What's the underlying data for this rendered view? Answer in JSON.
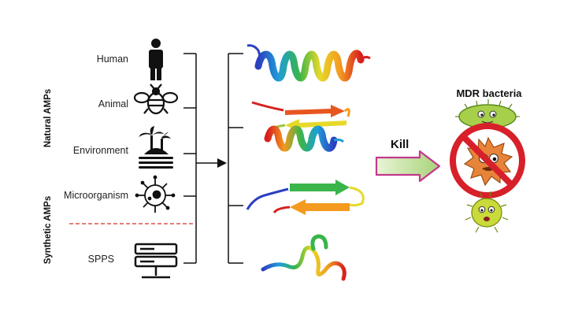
{
  "side_labels": {
    "natural": "Natural AMPs",
    "synthetic": "Synthetic AMPs"
  },
  "sources": [
    {
      "label": "Human",
      "icon": "human-icon"
    },
    {
      "label": "Animal",
      "icon": "bee-icon"
    },
    {
      "label": "Environment",
      "icon": "island-icon"
    },
    {
      "label": "Microorganism",
      "icon": "microorganism-icon"
    },
    {
      "label": "SPPS",
      "icon": "server-icon"
    }
  ],
  "structures": [
    "alpha-helix",
    "beta-hairpin-with-helix",
    "beta-hairpin",
    "random-coil"
  ],
  "action": {
    "label": "Kill"
  },
  "target": {
    "label": "MDR bacteria"
  },
  "colors": {
    "divider": "#d9534f",
    "prohibit": "#d7202a",
    "arrow_fill": "#c8e6a0",
    "arrow_outline": "#c2398c",
    "bacteria_green": "#a7d04a",
    "bacteria_orange": "#e8843a",
    "bacteria_yellow": "#c9da3a"
  }
}
